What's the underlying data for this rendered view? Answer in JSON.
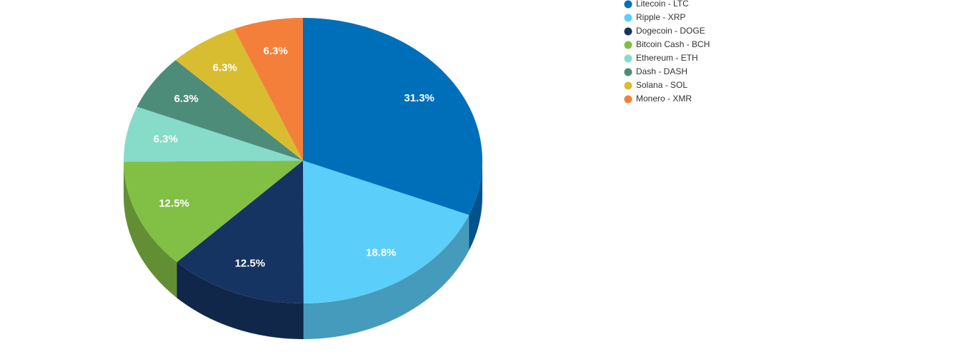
{
  "chart_data": {
    "type": "pie3d",
    "categories": [
      "Litecoin - LTC",
      "Ripple - XRP",
      "Dogecoin - DOGE",
      "Bitcoin Cash - BCH",
      "Ethereum - ETH",
      "Dash - DASH",
      "Solana - SOL",
      "Monero - XMR"
    ],
    "values": [
      31.3,
      18.8,
      12.5,
      12.5,
      6.3,
      6.3,
      6.3,
      6.3
    ],
    "value_labels": [
      "31.3%",
      "18.8%",
      "12.5%",
      "12.5%",
      "6.3%",
      "6.3%",
      "6.3%",
      "6.3%"
    ],
    "colors": [
      "#006fba",
      "#5bcffa",
      "#163461",
      "#82bf45",
      "#86dbc9",
      "#4e8c7a",
      "#d9bd30",
      "#f47f3a"
    ],
    "legend": "top-right"
  }
}
